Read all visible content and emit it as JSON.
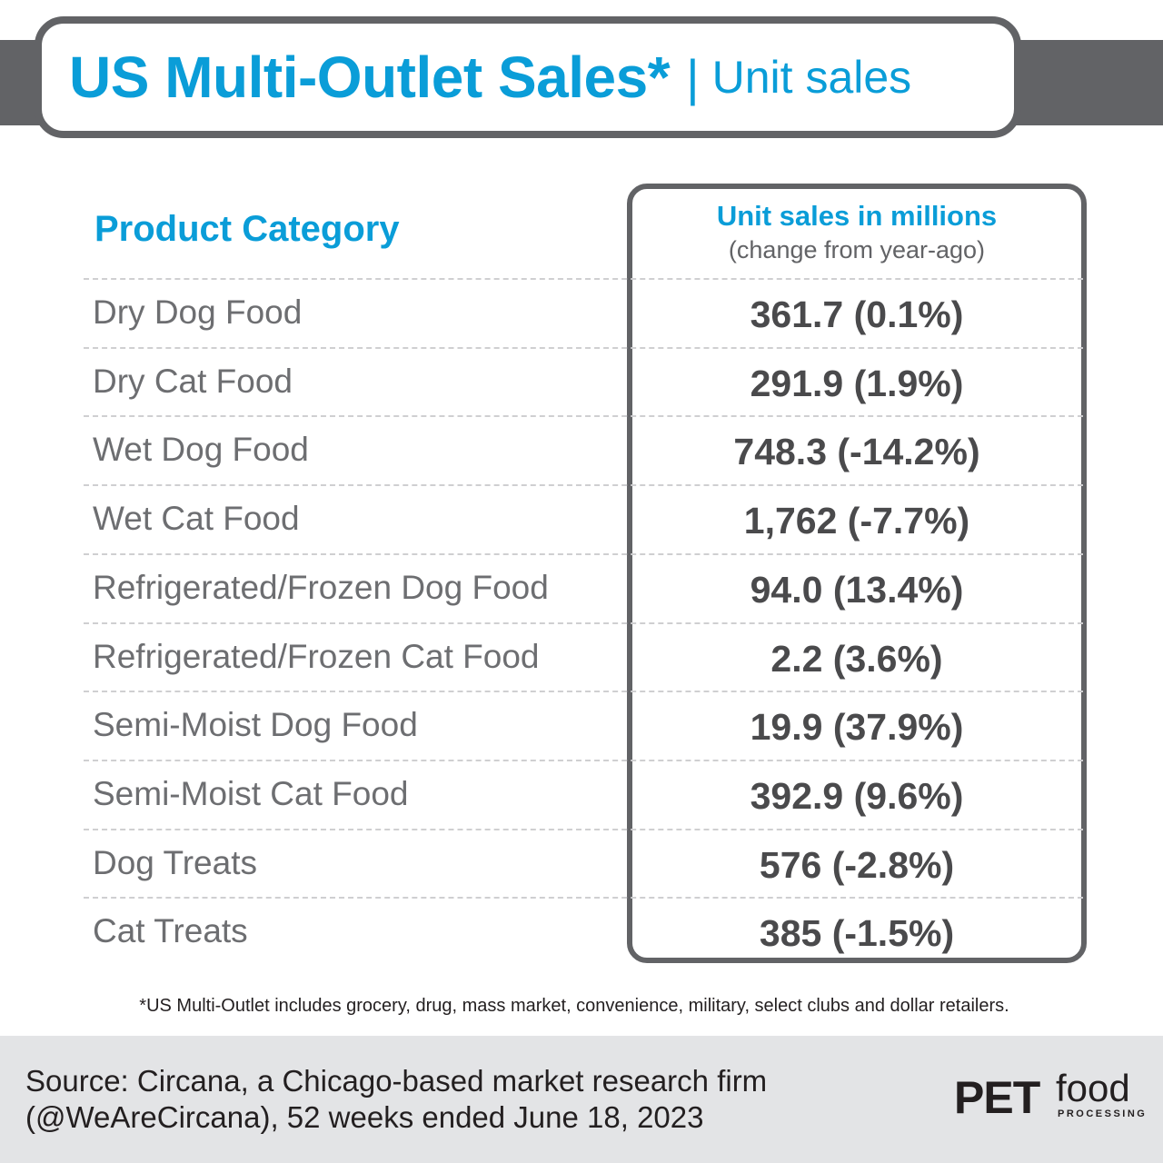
{
  "header": {
    "title_main": "US Multi-Outlet Sales*",
    "title_sep": "|",
    "title_sub": "Unit sales"
  },
  "chart_data": {
    "type": "table",
    "columns": [
      {
        "label": "Product Category"
      },
      {
        "label": "Unit sales in millions",
        "sublabel": "(change from year-ago)"
      }
    ],
    "rows": [
      {
        "category": "Dry Dog Food",
        "value": "361.7 (0.1%)",
        "units": 361.7,
        "change_pct": 0.1
      },
      {
        "category": "Dry Cat Food",
        "value": "291.9 (1.9%)",
        "units": 291.9,
        "change_pct": 1.9
      },
      {
        "category": "Wet Dog Food",
        "value": "748.3 (-14.2%)",
        "units": 748.3,
        "change_pct": -14.2
      },
      {
        "category": "Wet Cat Food",
        "value": "1,762 (-7.7%)",
        "units": 1762,
        "change_pct": -7.7
      },
      {
        "category": "Refrigerated/Frozen Dog Food",
        "value": "94.0 (13.4%)",
        "units": 94.0,
        "change_pct": 13.4
      },
      {
        "category": "Refrigerated/Frozen Cat Food",
        "value": "2.2 (3.6%)",
        "units": 2.2,
        "change_pct": 3.6
      },
      {
        "category": "Semi-Moist Dog Food",
        "value": "19.9 (37.9%)",
        "units": 19.9,
        "change_pct": 37.9
      },
      {
        "category": "Semi-Moist Cat Food",
        "value": "392.9 (9.6%)",
        "units": 392.9,
        "change_pct": 9.6
      },
      {
        "category": "Dog Treats",
        "value": "576 (-2.8%)",
        "units": 576,
        "change_pct": -2.8
      },
      {
        "category": "Cat Treats",
        "value": "385 (-1.5%)",
        "units": 385,
        "change_pct": -1.5
      }
    ]
  },
  "footnote": "*US Multi-Outlet includes grocery, drug, mass market, convenience, military, select clubs and dollar retailers.",
  "source": {
    "line1": "Source: Circana, a Chicago-based market research firm",
    "line2": "(@WeAreCircana), 52 weeks ended June 18, 2023"
  },
  "logo": {
    "pet": "PET",
    "food": "food",
    "processing": "PROCESSING"
  },
  "colors": {
    "accent_blue": "#0a9dd8",
    "frame_gray": "#626366",
    "text_gray": "#6d6e71",
    "value_gray": "#4a4a4c",
    "source_band": "#e3e4e6"
  }
}
